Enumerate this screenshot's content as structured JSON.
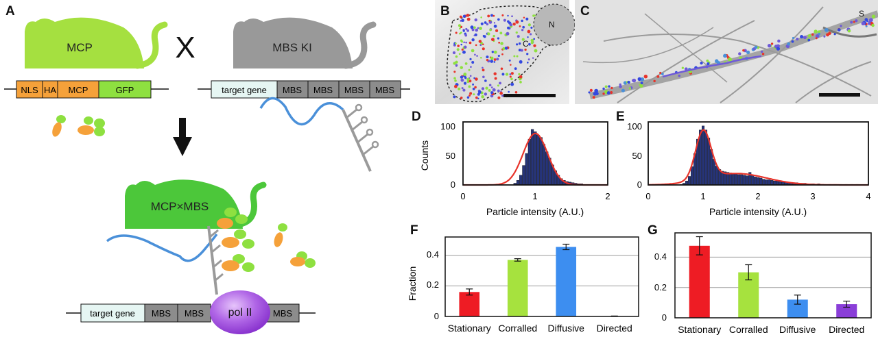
{
  "panels": {
    "A": {
      "label": "A",
      "mouse_mcp": "MCP",
      "cross": "X",
      "mouse_mbs": "MBS KI",
      "mouse_cross": "MCP×MBS",
      "construct_mcp": [
        "NLS",
        "HA",
        "MCP",
        "GFP"
      ],
      "construct_mbs": [
        "target gene",
        "MBS",
        "MBS",
        "MBS",
        "MBS"
      ],
      "construct_bottom": [
        "target gene",
        "MBS",
        "MBS",
        "MBS"
      ],
      "pol": "pol II",
      "colors": {
        "mcp_green": "#a5e040",
        "mbs_gray": "#999999",
        "cross_green": "#4cc73a",
        "orange": "#f5a13a",
        "gfp": "#8ee040",
        "rna": "#4a90d9",
        "pol": "#a24fd8",
        "target": "#e6f6f3",
        "mbs_box": "#8c8c8c"
      }
    },
    "B": {
      "label": "B",
      "N": "N",
      "C": "C"
    },
    "C": {
      "label": "C",
      "S": "S"
    },
    "D": {
      "label": "D",
      "ylabel": "Counts",
      "xlabel": "Particle intensity (A.U.)",
      "xticks": [
        "0",
        "1",
        "2"
      ],
      "yticks": [
        "0",
        "50",
        "100"
      ]
    },
    "E": {
      "label": "E",
      "xlabel": "Particle intensity (A.U.)",
      "xticks": [
        "0",
        "1",
        "2",
        "3",
        "4"
      ],
      "yticks": [
        "0",
        "50",
        "100"
      ]
    },
    "F": {
      "label": "F",
      "ylabel": "Fraction",
      "yticks": [
        "0",
        "0.2",
        "0.4"
      ]
    },
    "G": {
      "label": "G",
      "yticks": [
        "0",
        "0.2",
        "0.4"
      ]
    }
  },
  "chart_data": [
    {
      "panel": "D",
      "type": "bar",
      "xlabel": "Particle intensity (A.U.)",
      "ylabel": "Counts",
      "xlim": [
        0,
        2
      ],
      "ylim": [
        0,
        110
      ],
      "bin_centers": [
        0.72,
        0.76,
        0.8,
        0.84,
        0.88,
        0.92,
        0.96,
        1.0,
        1.04,
        1.08,
        1.12,
        1.16,
        1.2,
        1.24,
        1.28,
        1.32,
        1.36,
        1.4,
        1.44,
        1.48,
        1.52,
        1.56,
        1.6,
        1.64,
        1.68,
        1.72,
        1.76,
        1.8,
        1.84,
        1.88
      ],
      "values": [
        3,
        8,
        17,
        34,
        55,
        80,
        97,
        93,
        87,
        83,
        71,
        58,
        47,
        35,
        25,
        17,
        11,
        8,
        6,
        5,
        4,
        3,
        2,
        2,
        1,
        1,
        1,
        1,
        1,
        1
      ],
      "fit": {
        "type": "gaussian",
        "mu": 1.0,
        "sigma": 0.17,
        "amplitude": 90
      }
    },
    {
      "panel": "E",
      "type": "bar",
      "xlabel": "Particle intensity (A.U.)",
      "xlim": [
        0,
        4
      ],
      "ylim": [
        0,
        110
      ],
      "bin_centers": [
        0.6,
        0.65,
        0.7,
        0.75,
        0.8,
        0.85,
        0.9,
        0.95,
        1.0,
        1.05,
        1.1,
        1.15,
        1.2,
        1.25,
        1.3,
        1.35,
        1.4,
        1.45,
        1.5,
        1.55,
        1.6,
        1.65,
        1.7,
        1.75,
        1.8,
        1.85,
        1.9,
        1.95,
        2.0,
        2.05,
        2.1,
        2.15,
        2.2,
        2.25,
        2.3,
        2.35,
        2.4,
        2.45,
        2.5,
        2.55,
        2.6,
        2.65,
        2.7,
        2.75,
        2.8,
        2.85,
        2.9,
        2.95,
        3.0,
        3.1,
        3.2,
        3.3,
        3.4,
        3.5,
        3.6,
        3.7,
        3.8
      ],
      "values": [
        1,
        3,
        7,
        15,
        32,
        55,
        80,
        96,
        103,
        96,
        82,
        62,
        45,
        33,
        27,
        24,
        23,
        22,
        21,
        20,
        19,
        18,
        18,
        17,
        16,
        22,
        17,
        14,
        13,
        12,
        10,
        9,
        9,
        8,
        7,
        7,
        6,
        5,
        5,
        5,
        4,
        4,
        4,
        3,
        3,
        3,
        2,
        2,
        2,
        2,
        1,
        1,
        1,
        1,
        1,
        1,
        1
      ],
      "fit": {
        "type": "two-gaussian",
        "components": [
          {
            "mu": 1.0,
            "sigma": 0.14,
            "amplitude": 85
          },
          {
            "mu": 1.6,
            "sigma": 0.55,
            "amplitude": 20
          }
        ]
      }
    },
    {
      "panel": "F",
      "type": "bar",
      "categories": [
        "Stationary",
        "Corralled",
        "Diffusive",
        "Directed"
      ],
      "values": [
        0.16,
        0.37,
        0.455,
        0.002
      ],
      "errors": [
        0.02,
        0.008,
        0.018,
        0.001
      ],
      "colors": [
        "#ee1c24",
        "#a6e23e",
        "#3d8ef0",
        "#8a3ed8"
      ],
      "ylabel": "Fraction",
      "ylim": [
        0,
        0.52
      ],
      "grid": true
    },
    {
      "panel": "G",
      "type": "bar",
      "categories": [
        "Stationary",
        "Corralled",
        "Diffusive",
        "Directed"
      ],
      "values": [
        0.475,
        0.3,
        0.12,
        0.09
      ],
      "errors": [
        0.06,
        0.05,
        0.03,
        0.02
      ],
      "colors": [
        "#ee1c24",
        "#a6e23e",
        "#3d8ef0",
        "#8a3ed8"
      ],
      "ylim": [
        0,
        0.56
      ],
      "grid": true
    }
  ]
}
